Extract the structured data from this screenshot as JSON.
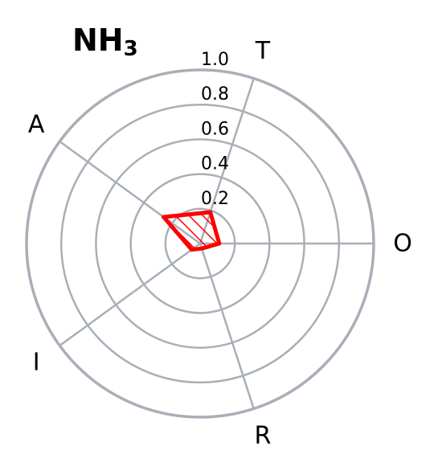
{
  "chart_data": {
    "type": "radar",
    "title": "NH",
    "title_subscript": "3",
    "categories": [
      "T",
      "O",
      "R",
      "I",
      "A"
    ],
    "category_angles_deg": [
      72,
      0,
      -72,
      -144,
      144
    ],
    "values": [
      0.19,
      0.11,
      0.03,
      0.06,
      0.26
    ],
    "rlim": [
      0,
      1.0
    ],
    "r_ticks": [
      0.2,
      0.4,
      0.6,
      0.8,
      1.0
    ],
    "r_tick_labels": [
      "0.2",
      "0.4",
      "0.6",
      "0.8",
      "1.0"
    ],
    "grid": true,
    "colors": {
      "series": "#ff0000",
      "grid": "#a9afb7"
    }
  }
}
